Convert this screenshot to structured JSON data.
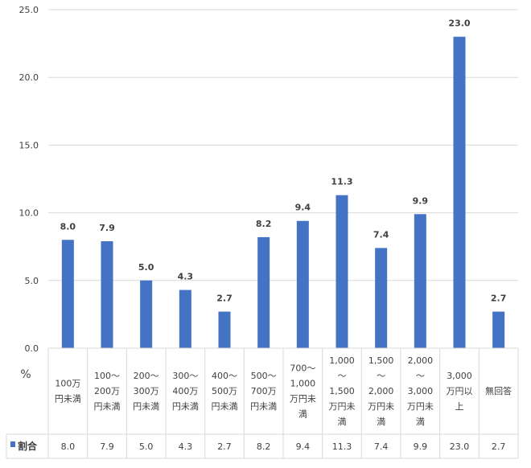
{
  "chart_data": {
    "type": "bar",
    "categories": [
      "100万\n円未満",
      "100～\n200万\n円未満",
      "200～\n300万\n円未満",
      "300～\n400万\n円未満",
      "400～\n500万\n円未満",
      "500～\n700万\n円未満",
      "700～\n1,000\n万円未\n満",
      "1,000\n～\n1,500\n万円未\n満",
      "1,500\n～\n2,000\n万円未\n満",
      "2,000\n～\n3,000\n万円未\n満",
      "3,000\n万円以\n上",
      "無回答"
    ],
    "series": [
      {
        "name": "割合",
        "values": [
          8.0,
          7.9,
          5.0,
          4.3,
          2.7,
          8.2,
          9.4,
          11.3,
          7.4,
          9.9,
          23.0,
          2.7
        ],
        "color": "#4472C4"
      }
    ],
    "ylabel": "%",
    "ylim": [
      0,
      25
    ],
    "yticks": [
      "0.0",
      "5.0",
      "10.0",
      "15.0",
      "20.0",
      "25.0"
    ],
    "grid": true,
    "data_table": true,
    "data_labels": true
  }
}
